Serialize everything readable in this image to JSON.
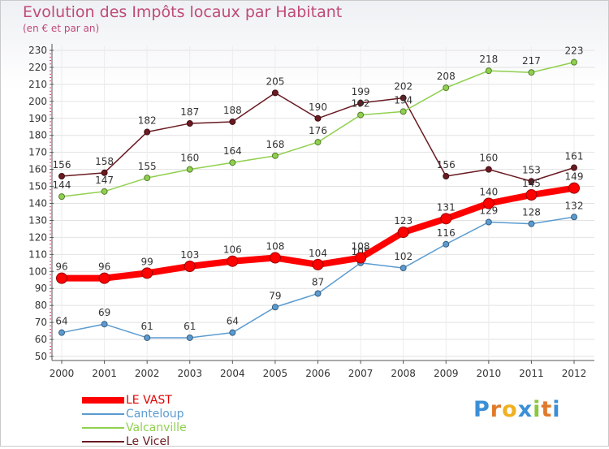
{
  "header": {
    "title": "Evolution des Impôts locaux par Habitant",
    "subtitle": "(en € et par an)"
  },
  "brand": {
    "logo_text": "Proxiti"
  },
  "chart_data": {
    "type": "line",
    "title": "Evolution des Impôts locaux par Habitant",
    "subtitle": "(en € et par an)",
    "xlabel": "",
    "ylabel": "",
    "x": [
      "2000",
      "2001",
      "2002",
      "2003",
      "2004",
      "2005",
      "2006",
      "2007",
      "2008",
      "2009",
      "2010",
      "2011",
      "2012"
    ],
    "ylim": [
      50,
      230
    ],
    "yticks": [
      50,
      60,
      70,
      80,
      90,
      100,
      110,
      120,
      130,
      140,
      150,
      160,
      170,
      180,
      190,
      200,
      210,
      220,
      230
    ],
    "grid": true,
    "legend": "bottom-left",
    "series": [
      {
        "name": "Le Vicel",
        "color": "#6a1a22",
        "values": [
          156,
          158,
          182,
          187,
          188,
          205,
          190,
          199,
          202,
          156,
          160,
          153,
          161
        ]
      },
      {
        "name": "Valcanville",
        "color": "#8fd04e",
        "values": [
          144,
          147,
          155,
          160,
          164,
          168,
          176,
          192,
          194,
          208,
          218,
          217,
          223
        ]
      },
      {
        "name": "Canteloup",
        "color": "#5b9bd0",
        "values": [
          64,
          69,
          61,
          61,
          64,
          79,
          87,
          105,
          102,
          116,
          129,
          128,
          132
        ]
      },
      {
        "name": "LE VAST",
        "color": "#ff0000",
        "values": [
          96,
          96,
          99,
          103,
          106,
          108,
          104,
          108,
          123,
          131,
          140,
          145,
          149
        ]
      }
    ]
  }
}
